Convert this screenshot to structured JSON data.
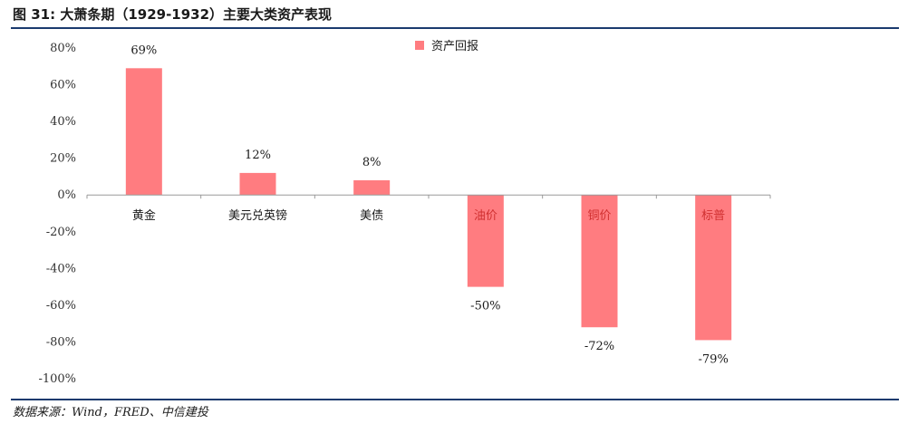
{
  "figure": {
    "title": "图 31: 大萧条期（1929-1932）主要大类资产表现",
    "source": "数据来源：Wind，FRED、中信建投"
  },
  "chart_data": {
    "type": "bar",
    "categories": [
      "黄金",
      "美元兑英镑",
      "美债",
      "油价",
      "铜价",
      "标普"
    ],
    "series": [
      {
        "name": "资产回报",
        "values": [
          69,
          12,
          8,
          -50,
          -72,
          -79
        ],
        "color": "#ff7c80"
      }
    ],
    "data_labels": [
      "69%",
      "12%",
      "8%",
      "-50%",
      "-72%",
      "-79%"
    ],
    "yticks": [
      80,
      60,
      40,
      20,
      0,
      -20,
      -40,
      -60,
      -80,
      -100
    ],
    "ytick_labels": [
      "80%",
      "60%",
      "40%",
      "20%",
      "0%",
      "-20%",
      "-40%",
      "-60%",
      "-80%",
      "-100%"
    ],
    "ylim": [
      -100,
      80
    ],
    "label_color_negative": "#d03030",
    "grid": false,
    "legend_position": "top"
  }
}
